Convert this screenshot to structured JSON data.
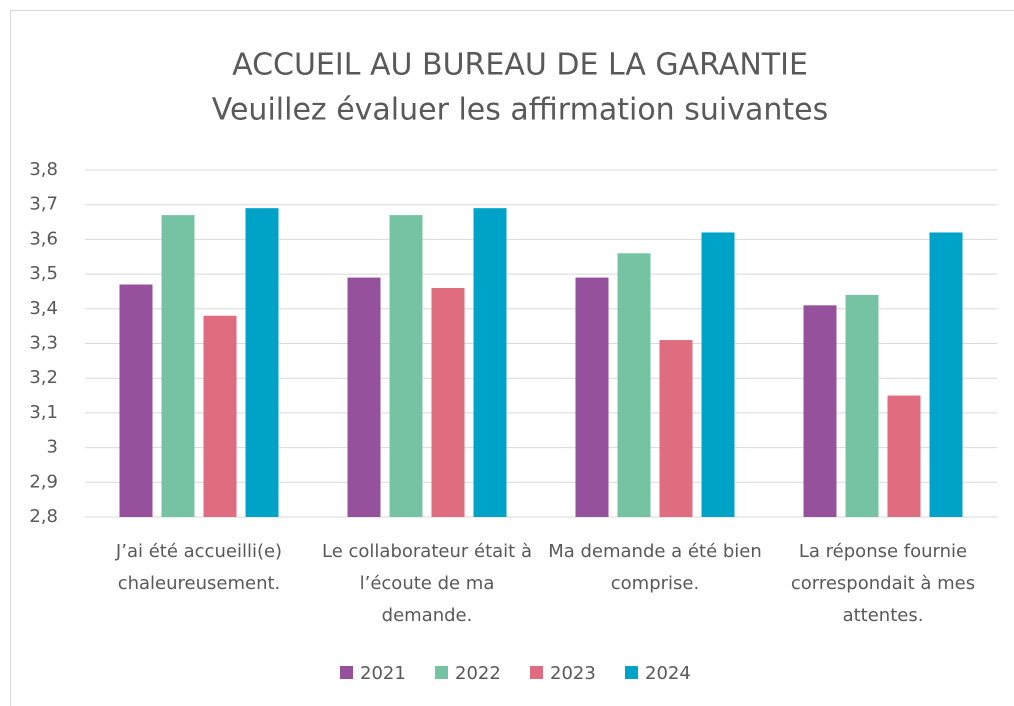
{
  "chart_data": {
    "type": "bar",
    "title": "ACCUEIL AU BUREAU DE LA GARANTIE",
    "subtitle": "Veuillez évaluer les affirmation suivantes",
    "categories": [
      "J’ai été accueilli(e) chaleureusement.",
      "Le collaborateur était à l’écoute de ma demande.",
      "Ma demande a été bien comprise.",
      "La réponse fournie correspondait à mes attentes."
    ],
    "series": [
      {
        "name": "2021",
        "color": "#96519c",
        "values": [
          3.47,
          3.49,
          3.49,
          3.41
        ]
      },
      {
        "name": "2022",
        "color": "#76c3a4",
        "values": [
          3.67,
          3.67,
          3.56,
          3.44
        ]
      },
      {
        "name": "2023",
        "color": "#e06c80",
        "values": [
          3.38,
          3.46,
          3.31,
          3.15
        ]
      },
      {
        "name": "2024",
        "color": "#00a3c8",
        "values": [
          3.69,
          3.69,
          3.62,
          3.62
        ]
      }
    ],
    "ylim": [
      2.8,
      3.8
    ],
    "yticks": [
      {
        "value": 2.8,
        "label": "2,8"
      },
      {
        "value": 2.9,
        "label": "2,9"
      },
      3,
      {
        "value": 3.1,
        "label": "3,1"
      },
      {
        "value": 3.2,
        "label": "3,2"
      },
      {
        "value": 3.3,
        "label": "3,3"
      },
      {
        "value": 3.4,
        "label": "3,4"
      },
      {
        "value": 3.5,
        "label": "3,5"
      },
      {
        "value": 3.6,
        "label": "3,6"
      },
      {
        "value": 3.7,
        "label": "3,7"
      },
      {
        "value": 3.8,
        "label": "3,8"
      }
    ],
    "grid": true,
    "legend": "bottom"
  }
}
